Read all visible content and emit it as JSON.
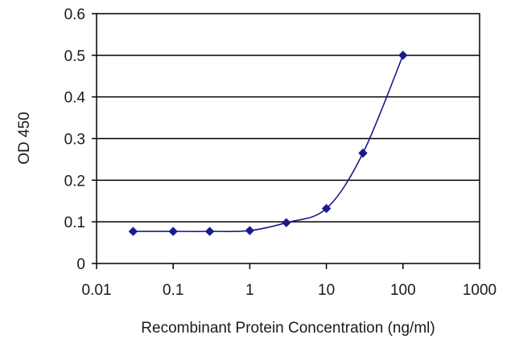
{
  "chart_data": {
    "type": "line",
    "title": "",
    "xlabel": "Recombinant Protein Concentration (ng/ml)",
    "ylabel": "OD 450",
    "x_scale": "log",
    "xlim": [
      0.01,
      1000
    ],
    "ylim": [
      0,
      0.6
    ],
    "x_ticks": [
      0.01,
      0.1,
      1,
      10,
      100,
      1000
    ],
    "x_tick_labels": [
      "0.01",
      "0.1",
      "1",
      "10",
      "100",
      "1000"
    ],
    "y_ticks": [
      0,
      0.1,
      0.2,
      0.3,
      0.4,
      0.5,
      0.6
    ],
    "y_tick_labels": [
      "0",
      "0.1",
      "0.2",
      "0.3",
      "0.4",
      "0.5",
      "0.6"
    ],
    "grid": "horizontal",
    "series": [
      {
        "x": [
          0.03,
          0.1,
          0.3,
          1,
          3,
          10,
          30,
          100
        ],
        "y": [
          0.077,
          0.077,
          0.077,
          0.079,
          0.098,
          0.132,
          0.265,
          0.5
        ]
      }
    ],
    "colors": {
      "series": "#1a1a8c",
      "grid": "#000000",
      "text": "#1a1a1a"
    }
  }
}
